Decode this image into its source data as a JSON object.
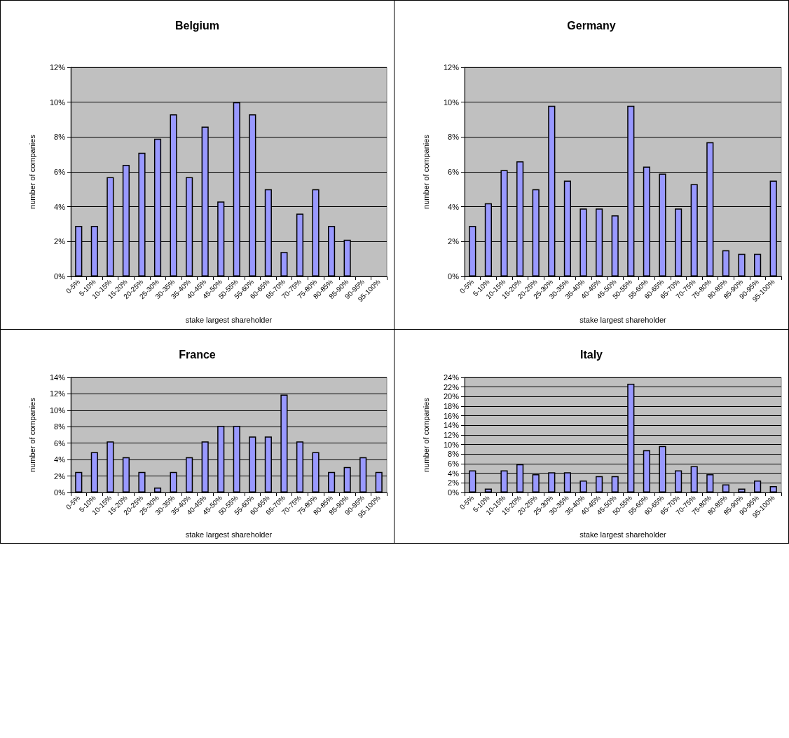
{
  "chart_data": [
    {
      "type": "bar",
      "title": "Belgium",
      "xlabel": "stake largest shareholder",
      "ylabel": "number of companies",
      "categories": [
        "0-5%",
        "5-10%",
        "10-15%",
        "15-20%",
        "20-25%",
        "25-30%",
        "30-35%",
        "35-40%",
        "40-45%",
        "45-50%",
        "50-55%",
        "55-60%",
        "60-65%",
        "65-70%",
        "70-75%",
        "75-80%",
        "80-85%",
        "85-90%",
        "90-95%",
        "95-100%"
      ],
      "color": "#9999ff",
      "values": [
        2.9,
        2.9,
        5.7,
        6.4,
        7.1,
        7.9,
        9.3,
        5.7,
        8.6,
        4.3,
        10,
        9.3,
        5,
        1.4,
        3.6,
        5,
        2.9,
        2.1,
        null,
        null
      ],
      "ylim": [
        0,
        12
      ],
      "yticks": [
        {
          "value": 0,
          "label": "0%"
        },
        {
          "value": 2,
          "label": "2%"
        },
        {
          "value": 4,
          "label": "4%"
        },
        {
          "value": 6,
          "label": "6%"
        },
        {
          "value": 8,
          "label": "8%"
        },
        {
          "value": 10,
          "label": "10%"
        },
        {
          "value": 12,
          "label": "12%"
        }
      ],
      "grid": "y"
    },
    {
      "type": "bar",
      "title": "Germany",
      "xlabel": "stake largest shareholder",
      "ylabel": "number of companies",
      "categories": [
        "0-5%",
        "5-10%",
        "10-15%",
        "15-20%",
        "20-25%",
        "25-30%",
        "30-35%",
        "35-40%",
        "40-45%",
        "45-50%",
        "50-55%",
        "55-60%",
        "60-65%",
        "65-70%",
        "70-75%",
        "75-80%",
        "80-85%",
        "85-90%",
        "90-95%",
        "95-100%"
      ],
      "color": "#9999ff",
      "values": [
        2.9,
        4.2,
        6.1,
        6.6,
        5,
        9.8,
        5.5,
        3.9,
        3.9,
        3.5,
        9.8,
        6.3,
        5.9,
        3.9,
        5.3,
        7.7,
        1.5,
        1.3,
        1.3,
        5.5
      ],
      "ylim": [
        0,
        12
      ],
      "yticks": [
        {
          "value": 0,
          "label": "0%"
        },
        {
          "value": 2,
          "label": "2%"
        },
        {
          "value": 4,
          "label": "4%"
        },
        {
          "value": 6,
          "label": "6%"
        },
        {
          "value": 8,
          "label": "8%"
        },
        {
          "value": 10,
          "label": "10%"
        },
        {
          "value": 12,
          "label": "12%"
        }
      ],
      "grid": "y"
    },
    {
      "type": "bar",
      "title": "France",
      "xlabel": "stake largest shareholder",
      "ylabel": "number of companies",
      "categories": [
        "0-5%",
        "5-10%",
        "10-15%",
        "15-20%",
        "20-25%",
        "25-30%",
        "30-35%",
        "35-40%",
        "40-45%",
        "45-50%",
        "50-55%",
        "55-60%",
        "60-65%",
        "65-70%",
        "70-75%",
        "75-80%",
        "80-85%",
        "85-90%",
        "90-95%",
        "95-100%"
      ],
      "color": "#9999ff",
      "values": [
        2.5,
        4.9,
        6.2,
        4.3,
        2.5,
        0.6,
        2.5,
        4.3,
        6.2,
        8.1,
        8.1,
        6.8,
        6.8,
        11.9,
        6.2,
        4.9,
        2.5,
        3.1,
        4.3,
        2.5
      ],
      "ylim": [
        0,
        14
      ],
      "yticks": [
        {
          "value": 0,
          "label": "0%"
        },
        {
          "value": 2,
          "label": "2%"
        },
        {
          "value": 4,
          "label": "4%"
        },
        {
          "value": 6,
          "label": "6%"
        },
        {
          "value": 8,
          "label": "8%"
        },
        {
          "value": 10,
          "label": "10%"
        },
        {
          "value": 12,
          "label": "12%"
        },
        {
          "value": 14,
          "label": "14%"
        }
      ],
      "grid": "y"
    },
    {
      "type": "bar",
      "title": "Italy",
      "xlabel": "stake largest shareholder",
      "ylabel": "number of companies",
      "categories": [
        "0-5%",
        "5-10%",
        "10-15%",
        "15-20%",
        "20-25%",
        "25-30%",
        "30-35%",
        "35-40%",
        "40-45%",
        "45-50%",
        "50-55%",
        "55-60%",
        "60-65%",
        "65-70%",
        "70-75%",
        "75-80%",
        "80-85%",
        "85-90%",
        "90-95%",
        "95-100%"
      ],
      "color": "#9999ff",
      "values": [
        4.6,
        0.8,
        4.6,
        5.9,
        3.8,
        4.2,
        4.2,
        2.5,
        3.4,
        3.4,
        22.7,
        8.8,
        9.7,
        4.6,
        5.5,
        3.8,
        1.7,
        0.8,
        2.5,
        1.3
      ],
      "ylim": [
        0,
        24
      ],
      "yticks": [
        {
          "value": 0,
          "label": "0%"
        },
        {
          "value": 2,
          "label": "2%"
        },
        {
          "value": 4,
          "label": "4%"
        },
        {
          "value": 6,
          "label": "6%"
        },
        {
          "value": 8,
          "label": "8%"
        },
        {
          "value": 10,
          "label": "10%"
        },
        {
          "value": 12,
          "label": "12%"
        },
        {
          "value": 14,
          "label": "14%"
        },
        {
          "value": 16,
          "label": "16%"
        },
        {
          "value": 18,
          "label": "18%"
        },
        {
          "value": 20,
          "label": "20%"
        },
        {
          "value": 22,
          "label": "22%"
        },
        {
          "value": 24,
          "label": "24%"
        }
      ],
      "grid": "y"
    }
  ]
}
